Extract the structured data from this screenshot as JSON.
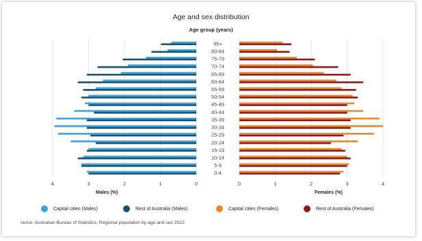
{
  "chart_data": {
    "type": "bar",
    "title": "Age and sex distribution",
    "subtitle": "Age group (years)",
    "categories": [
      "85+",
      "80-84",
      "75-79",
      "70-74",
      "65-69",
      "60-64",
      "55-59",
      "50-54",
      "45-49",
      "40-44",
      "35-39",
      "30-34",
      "25-29",
      "20-24",
      "15-19",
      "10-14",
      "5-9",
      "0-4"
    ],
    "series": [
      {
        "name": "Capital cities (Males)",
        "color": "#3aa3d9",
        "side": "left",
        "values": [
          0.7,
          0.8,
          1.4,
          1.9,
          2.1,
          2.6,
          2.8,
          3.0,
          3.1,
          3.4,
          3.9,
          3.95,
          3.85,
          3.5,
          3.0,
          3.15,
          3.2,
          3.05
        ]
      },
      {
        "name": "Rest of Australia (Males)",
        "color": "#1b4f72",
        "side": "left",
        "values": [
          0.98,
          1.25,
          2.05,
          2.75,
          3.05,
          3.3,
          3.15,
          3.2,
          3.0,
          2.85,
          3.05,
          3.05,
          2.95,
          2.8,
          3.05,
          3.3,
          3.2,
          3.0
        ]
      },
      {
        "name": "Capital cities (Females)",
        "color": "#e8882a",
        "side": "right",
        "values": [
          1.2,
          1.05,
          1.6,
          2.05,
          2.35,
          2.7,
          2.85,
          3.15,
          3.2,
          3.45,
          3.9,
          4.0,
          3.75,
          3.3,
          2.85,
          3.0,
          3.05,
          2.9
        ]
      },
      {
        "name": "Rest of Australia (Females)",
        "color": "#8b1a1a",
        "side": "right",
        "values": [
          1.45,
          1.4,
          2.1,
          2.75,
          3.1,
          3.45,
          3.25,
          3.3,
          3.0,
          3.0,
          3.1,
          3.1,
          2.9,
          2.55,
          2.95,
          3.1,
          3.0,
          2.8
        ]
      }
    ],
    "left_axis": {
      "label": "Males (%)",
      "ticks": [
        4,
        3,
        2,
        1,
        0
      ],
      "max": 4
    },
    "right_axis": {
      "label": "Females (%)",
      "ticks": [
        0,
        1,
        2,
        3,
        4
      ],
      "max": 4
    },
    "grid": "vertical",
    "legend_position": "bottom"
  },
  "source": "ource: Australian Bureau of Statistics, Regional population by age and sex 2022"
}
